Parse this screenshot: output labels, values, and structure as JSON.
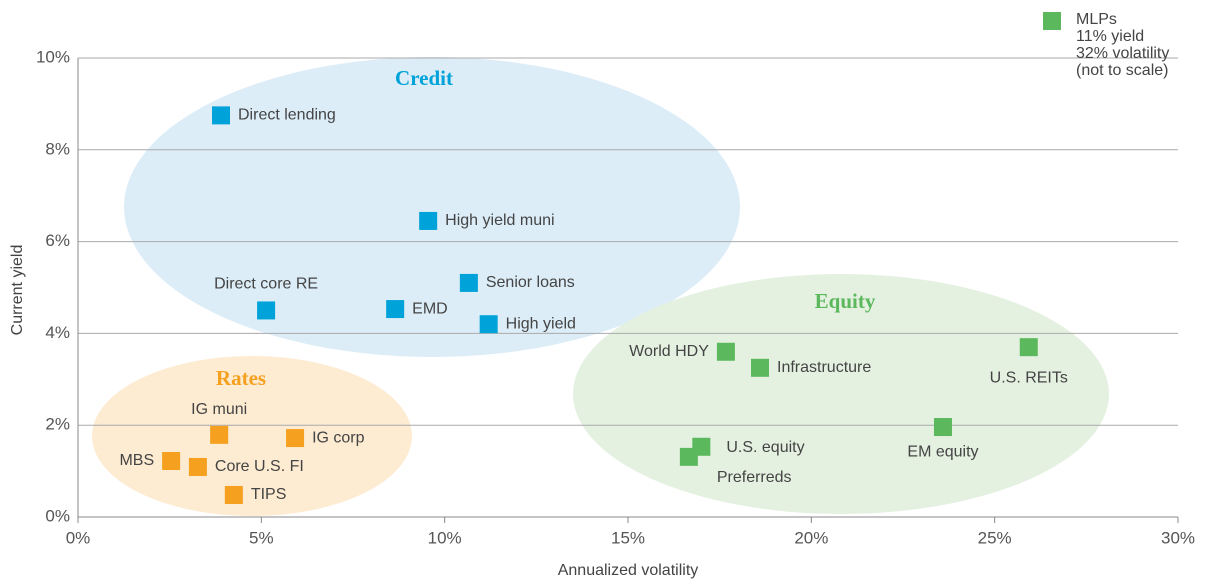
{
  "chart_data": {
    "type": "scatter",
    "x_label": "Annualized volatility",
    "y_label": "Current yield",
    "xlim": [
      0,
      30
    ],
    "ylim": [
      0,
      10
    ],
    "xticks": [
      {
        "value": 0,
        "label": "0%"
      },
      {
        "value": 5,
        "label": "5%"
      },
      {
        "value": 10,
        "label": "10%"
      },
      {
        "value": 15,
        "label": "15%"
      },
      {
        "value": 20,
        "label": "20%"
      },
      {
        "value": 25,
        "label": "25%"
      },
      {
        "value": 30,
        "label": "30%"
      }
    ],
    "yticks": [
      {
        "value": 0,
        "label": "0%"
      },
      {
        "value": 2,
        "label": "2%"
      },
      {
        "value": 4,
        "label": "4%"
      },
      {
        "value": 6,
        "label": "6%"
      },
      {
        "value": 8,
        "label": "8%"
      },
      {
        "value": 10,
        "label": "10%"
      }
    ],
    "grid": true,
    "groups": [
      {
        "name": "Credit",
        "color": "#00a3d9",
        "points": [
          {
            "label": "Direct lending",
            "x": 3.9,
            "y": 8.75
          },
          {
            "label": "High yield muni",
            "x": 9.55,
            "y": 6.45
          },
          {
            "label": "Direct core RE",
            "x": 5.13,
            "y": 4.5
          },
          {
            "label": "EMD",
            "x": 8.65,
            "y": 4.53
          },
          {
            "label": "Senior loans",
            "x": 10.66,
            "y": 5.1
          },
          {
            "label": "High yield",
            "x": 11.2,
            "y": 4.2
          }
        ]
      },
      {
        "name": "Rates",
        "color": "#f5a01e",
        "points": [
          {
            "label": "IG muni",
            "x": 3.85,
            "y": 1.79
          },
          {
            "label": "IG corp",
            "x": 5.92,
            "y": 1.72
          },
          {
            "label": "MBS",
            "x": 2.54,
            "y": 1.22
          },
          {
            "label": "Core U.S. FI",
            "x": 3.27,
            "y": 1.09
          },
          {
            "label": "TIPS",
            "x": 4.25,
            "y": 0.48
          }
        ]
      },
      {
        "name": "Equity",
        "color": "#5cb85c",
        "points": [
          {
            "label": "World HDY",
            "x": 17.67,
            "y": 3.6
          },
          {
            "label": "Infrastructure",
            "x": 18.6,
            "y": 3.25
          },
          {
            "label": "U.S. REITs",
            "x": 25.93,
            "y": 3.7
          },
          {
            "label": "EM equity",
            "x": 23.59,
            "y": 1.96
          },
          {
            "label": "U.S. equity",
            "x": 17.0,
            "y": 1.53
          },
          {
            "label": "Preferreds",
            "x": 16.66,
            "y": 1.31
          }
        ]
      }
    ],
    "annotation": [
      "MLPs",
      "11% yield",
      "32% volatility",
      "(not to scale)"
    ]
  }
}
